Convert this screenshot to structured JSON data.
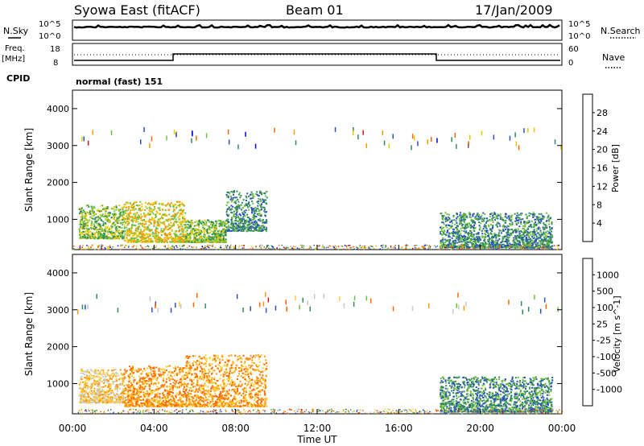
{
  "header": {
    "station": "Syowa East (fitACF)",
    "beam": "Beam 01",
    "date": "17/Jan/2009"
  },
  "strip_labels": {
    "nsky": "N.Sky",
    "nsearch": "N.Search",
    "freq_line1": "Freq.",
    "freq_line2": "[MHz]",
    "nave": "Nave",
    "cpid": "CPID",
    "cpid_value": "normal (fast) 151",
    "sky_tick_top": "10^5",
    "sky_tick_bottom": "10^0",
    "search_tick_top": "10^5",
    "search_tick_bottom": "10^0",
    "freq_tick_top": "18",
    "freq_tick_bottom": "8",
    "nave_tick_top": "60",
    "nave_tick_bottom": "0"
  },
  "chart_data": [
    {
      "type": "heatmap",
      "title": "",
      "quantity": "Power",
      "colorbar_label": "Power [dB]",
      "colorbar_ticks": [
        "28",
        "24",
        "20",
        "16",
        "12",
        "8",
        "4"
      ],
      "colors": [
        "#0000e0",
        "#2850c0",
        "#2e8b57",
        "#6fbf3f",
        "#e6c800",
        "#ff9900",
        "#ff6600",
        "#e01010"
      ],
      "ylabel": "Slant Range [km]",
      "xlabel": "",
      "x_ticks": [
        "00:00",
        "04:00",
        "08:00",
        "12:00",
        "16:00",
        "20:00",
        "00:00"
      ],
      "y_ticks": [
        "1000",
        "2000",
        "3000",
        "4000"
      ],
      "xlim_hours": [
        0,
        24
      ],
      "ylim_km": [
        180,
        4500
      ],
      "echo_regions": [
        {
          "start_h": 0.3,
          "end_h": 2.5,
          "range_lo_km": 500,
          "range_hi_km": 1400,
          "level": 3
        },
        {
          "start_h": 2.5,
          "end_h": 5.5,
          "range_lo_km": 400,
          "range_hi_km": 1500,
          "level": 4
        },
        {
          "start_h": 5.5,
          "end_h": 7.5,
          "range_lo_km": 400,
          "range_hi_km": 1000,
          "level": 3
        },
        {
          "start_h": 7.5,
          "end_h": 9.5,
          "range_lo_km": 700,
          "range_hi_km": 1800,
          "level": 2
        },
        {
          "start_h": 18.0,
          "end_h": 23.5,
          "range_lo_km": 250,
          "range_hi_km": 1200,
          "level": 2
        }
      ]
    },
    {
      "type": "heatmap",
      "title": "",
      "quantity": "Velocity",
      "colorbar_label": "Velocity [m s^-1]",
      "colorbar_ticks": [
        "1000",
        "500",
        "100",
        "25",
        "-25",
        "-100",
        "-500",
        "-1000"
      ],
      "colors": [
        "#e01010",
        "#ff6600",
        "#ff9900",
        "#ffcc33",
        "#c8c8c8",
        "#6fbf3f",
        "#2e8b57",
        "#2850c0",
        "#3050d0"
      ],
      "ylabel": "Slant Range [km]",
      "xlabel": "Time UT",
      "x_ticks": [
        "00:00",
        "04:00",
        "08:00",
        "12:00",
        "16:00",
        "20:00",
        "00:00"
      ],
      "y_ticks": [
        "1000",
        "2000",
        "3000",
        "4000"
      ],
      "xlim_hours": [
        0,
        24
      ],
      "ylim_km": [
        180,
        4500
      ],
      "echo_regions": [
        {
          "start_h": 0.3,
          "end_h": 2.5,
          "range_lo_km": 500,
          "range_hi_km": 1400,
          "level": 3
        },
        {
          "start_h": 2.5,
          "end_h": 5.5,
          "range_lo_km": 400,
          "range_hi_km": 1500,
          "level": 2
        },
        {
          "start_h": 5.5,
          "end_h": 9.5,
          "range_lo_km": 400,
          "range_hi_km": 1800,
          "level": 2
        },
        {
          "start_h": 18.0,
          "end_h": 23.5,
          "range_lo_km": 250,
          "range_hi_km": 1200,
          "level": 6
        }
      ]
    }
  ]
}
